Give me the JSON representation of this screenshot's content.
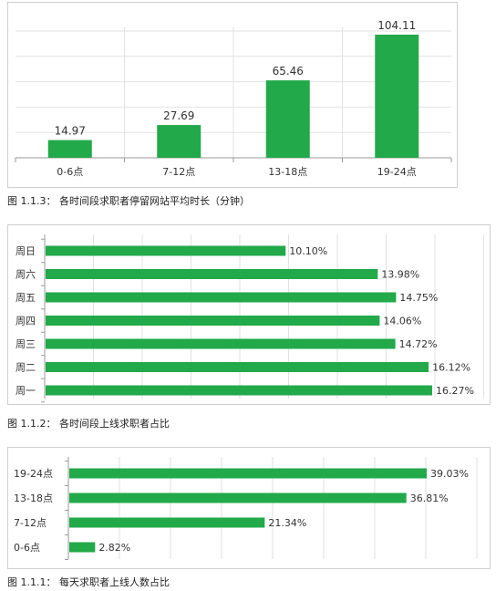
{
  "chart_data": [
    {
      "type": "bar",
      "categories": [
        "0-6点",
        "7-12点",
        "13-18点",
        "19-24点"
      ],
      "values": [
        14.97,
        27.69,
        65.46,
        104.11
      ],
      "data_labels": [
        "14.97",
        "27.69",
        "65.46",
        "104.11"
      ],
      "ylim": [
        0,
        104.11
      ],
      "grid": true,
      "colors": {
        "bar": "#22a94a",
        "grid": "#e2e2e2",
        "axis": "#9a9a9a"
      },
      "caption": "图 1.1.3：  各时间段求职者停留网站平均时长（分钟）"
    },
    {
      "type": "bar",
      "orientation": "horizontal",
      "categories": [
        "周日",
        "周六",
        "周五",
        "周四",
        "周三",
        "周二",
        "周一"
      ],
      "values": [
        10.1,
        13.98,
        14.75,
        14.06,
        14.72,
        16.12,
        16.27
      ],
      "data_labels": [
        "10.10%",
        "13.98%",
        "14.75%",
        "14.06%",
        "14.72%",
        "16.12%",
        "16.27%"
      ],
      "xlim": [
        0,
        16.27
      ],
      "grid": true,
      "colors": {
        "bar": "#22a94a",
        "grid": "#e2e2e2",
        "axis": "#9a9a9a"
      },
      "caption": "图 1.1.2：  各时间段上线求职者占比"
    },
    {
      "type": "bar",
      "orientation": "horizontal",
      "categories": [
        "19-24点",
        "13-18点",
        "7-12点",
        "0-6点"
      ],
      "values": [
        39.03,
        36.81,
        21.34,
        2.82
      ],
      "data_labels": [
        "39.03%",
        "36.81%",
        "21.34%",
        "2.82%"
      ],
      "xlim": [
        0,
        39.03
      ],
      "grid": true,
      "colors": {
        "bar": "#22a94a",
        "grid": "#e2e2e2",
        "axis": "#9a9a9a"
      },
      "caption": "图 1.1.1：  每天求职者上线人数占比"
    }
  ]
}
